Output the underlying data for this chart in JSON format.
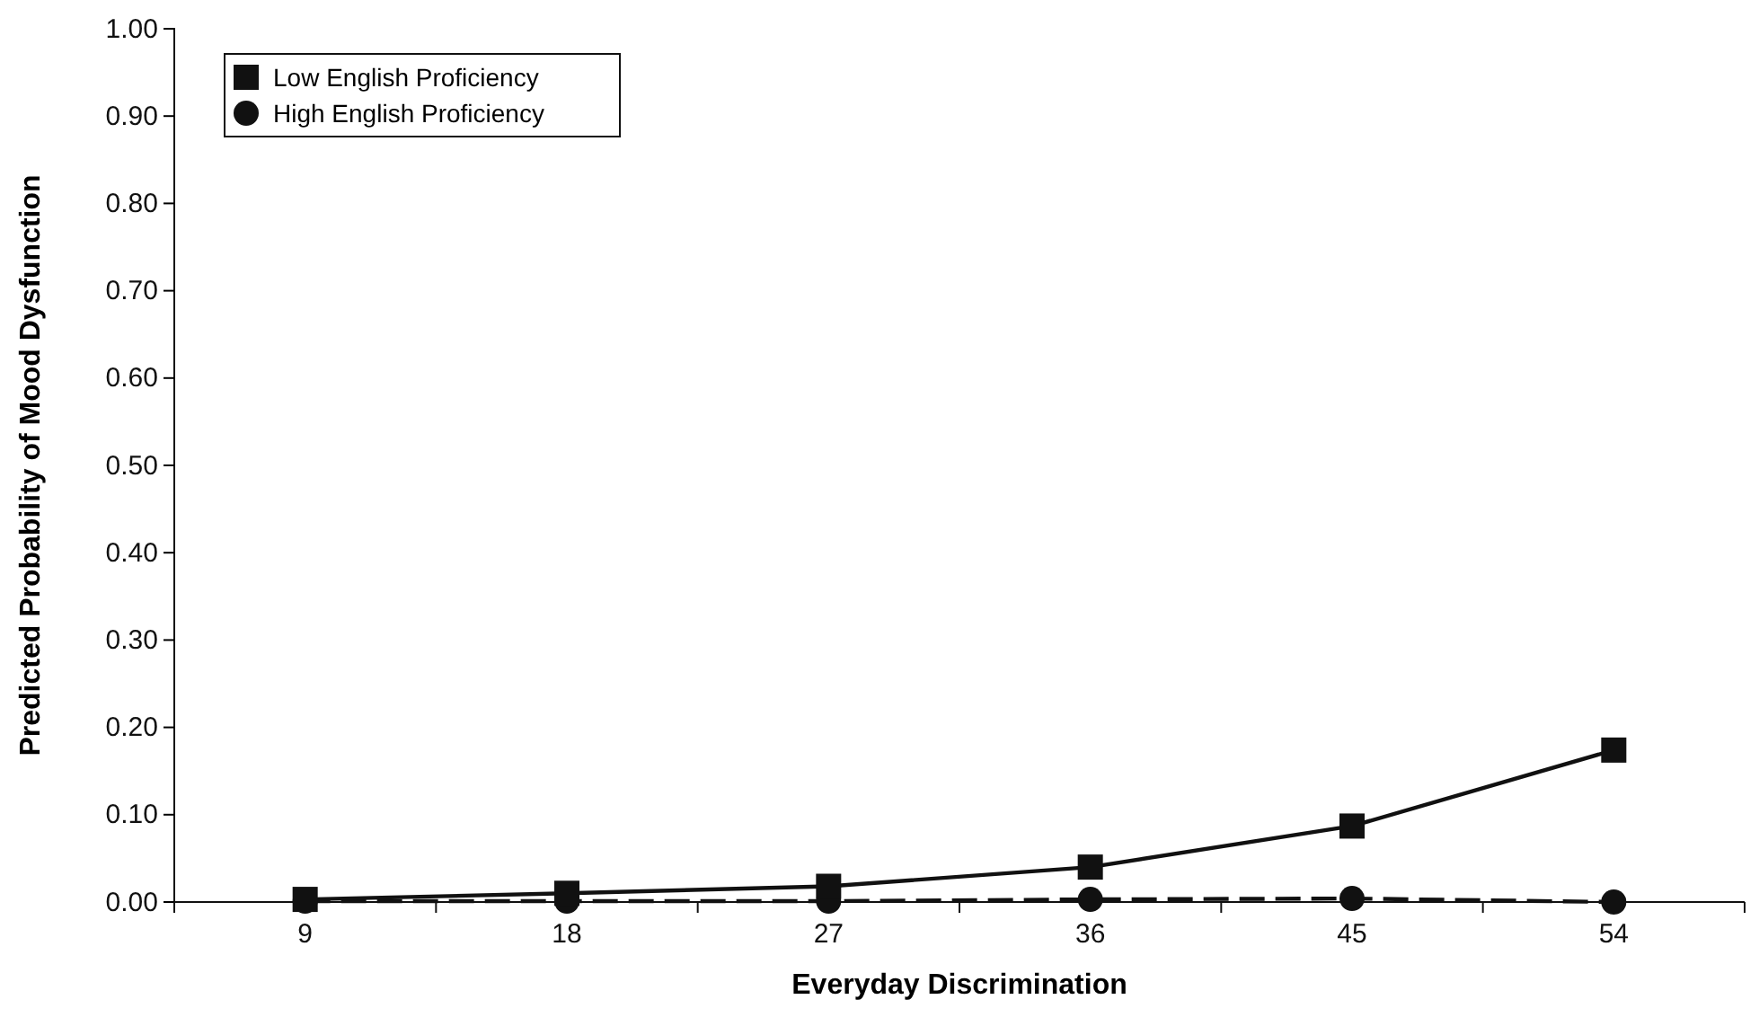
{
  "chart_data": {
    "type": "line",
    "xlabel": "Everyday Discrimination",
    "ylabel": "Predicted Probability of Mood Dysfunction",
    "categories": [
      "9",
      "18",
      "27",
      "36",
      "45",
      "54"
    ],
    "ylim": [
      0,
      1
    ],
    "yticks": [
      {
        "value": 0,
        "label": "0.00"
      },
      {
        "value": 0.1,
        "label": "0.10"
      },
      {
        "value": 0.2,
        "label": "0.20"
      },
      {
        "value": 0.3,
        "label": "0.30"
      },
      {
        "value": 0.4,
        "label": "0.40"
      },
      {
        "value": 0.5,
        "label": "0.50"
      },
      {
        "value": 0.6,
        "label": "0.60"
      },
      {
        "value": 0.7,
        "label": "0.70"
      },
      {
        "value": 0.8,
        "label": "0.80"
      },
      {
        "value": 0.9,
        "label": "0.90"
      },
      {
        "value": 1,
        "label": "1.00"
      }
    ],
    "grid": false,
    "legend": "top left",
    "series": [
      {
        "name": "Low English Proficiency",
        "color": "#111111",
        "marker": "square",
        "line_style": "solid",
        "values": [
          0.003,
          0.01,
          0.018,
          0.04,
          0.087,
          0.174
        ]
      },
      {
        "name": "High English Proficiency",
        "color": "#111111",
        "marker": "circle",
        "line_style": "dashed",
        "values": [
          0.001,
          0.001,
          0.001,
          0.003,
          0.004,
          0.0
        ]
      }
    ]
  }
}
